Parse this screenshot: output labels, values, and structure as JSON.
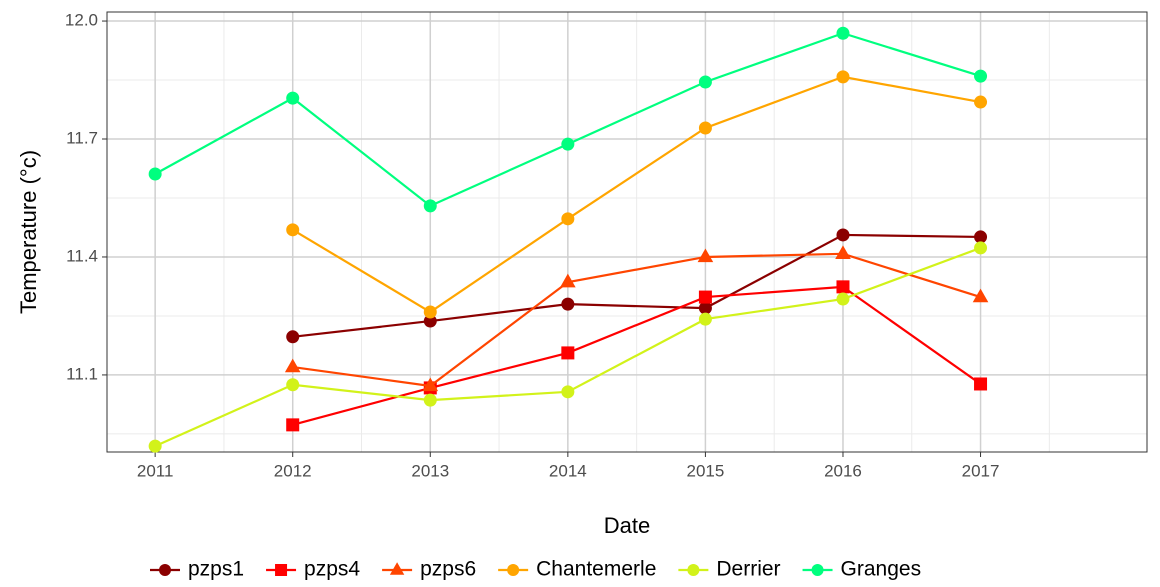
{
  "chart_data": {
    "type": "line",
    "x_label": "Date",
    "y_label": "Temperature (°c)",
    "x": [
      2011,
      2012,
      2013,
      2014,
      2015,
      2016,
      2017
    ],
    "xlim": [
      2010.65,
      2018.21
    ],
    "xticks": [
      2011,
      2012,
      2013,
      2014,
      2015,
      2016,
      2017
    ],
    "ylim": [
      10.904,
      12.023
    ],
    "yticks": [
      {
        "value": 12,
        "label": "12.0"
      },
      11.7,
      11.4,
      11.1
    ],
    "grid": true,
    "legend_position": "bottom",
    "series": [
      {
        "name": "pzps1",
        "color": "#8b0000",
        "marker": "circle",
        "values": [
          null,
          11.197,
          11.237,
          11.28,
          11.27,
          11.456,
          11.451
        ]
      },
      {
        "name": "pzps4",
        "color": "#ff0000",
        "marker": "square",
        "values": [
          null,
          10.973,
          11.067,
          11.156,
          11.298,
          11.324,
          11.077
        ]
      },
      {
        "name": "pzps6",
        "color": "#ff4500",
        "marker": "triangle",
        "values": [
          null,
          11.12,
          11.072,
          11.336,
          11.4,
          11.408,
          11.298
        ]
      },
      {
        "name": "Chantemerle",
        "color": "#ffa500",
        "marker": "circle",
        "values": [
          null,
          11.469,
          11.26,
          11.497,
          11.728,
          11.858,
          11.794
        ]
      },
      {
        "name": "Derrier",
        "color": "#d2f21a",
        "marker": "circle",
        "values": [
          10.919,
          11.075,
          11.036,
          11.057,
          11.242,
          11.293,
          11.423
        ]
      },
      {
        "name": "Granges",
        "color": "#00ff7f",
        "marker": "circle",
        "values": [
          11.611,
          11.804,
          11.53,
          11.687,
          11.845,
          11.969,
          11.86
        ]
      }
    ]
  }
}
